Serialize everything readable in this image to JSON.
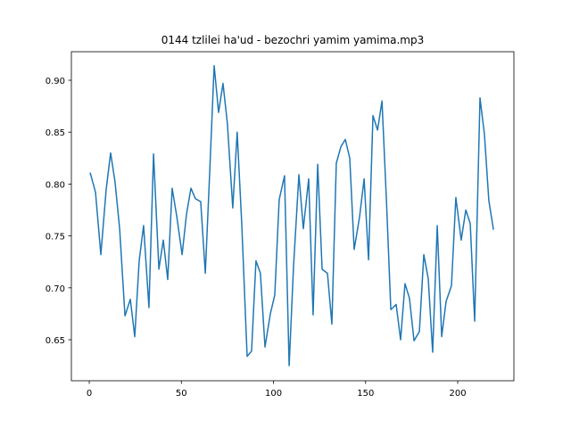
{
  "chart_data": {
    "type": "line",
    "title": "0144 tzlilei ha'ud - bezochri yamim yamima.mp3",
    "series": [
      {
        "color": "#1f77b4",
        "x": [
          0.5,
          3.4,
          6.3,
          9.2,
          11.6,
          14,
          16.5,
          19.4,
          22.3,
          24.7,
          27.1,
          29.5,
          32.4,
          34.9,
          37.8,
          40.2,
          42.6,
          45,
          47.5,
          50.4,
          52.8,
          55.2,
          57.6,
          60.5,
          63,
          65.4,
          67.8,
          70.2,
          72.6,
          75,
          77.9,
          80.3,
          82.8,
          85.7,
          88.1,
          90.5,
          92.9,
          95.4,
          98.3,
          100.7,
          103.1,
          106,
          108.5,
          110.9,
          113.8,
          116.2,
          119.1,
          121.5,
          124,
          126.4,
          129.3,
          131.7,
          134.1,
          136.6,
          139,
          141.4,
          143.8,
          146.7,
          149.2,
          151.6,
          154,
          156.5,
          158.9,
          161.3,
          163.7,
          166.6,
          169,
          171.4,
          173.8,
          176.3,
          179.2,
          181.6,
          184,
          186.4,
          188.9,
          191.3,
          193.7,
          196.6,
          199,
          201.9,
          204.4,
          206.8,
          209.2,
          212.1,
          214.5,
          216.9,
          219.4
        ],
        "values": [
          0.811,
          0.792,
          0.732,
          0.795,
          0.83,
          0.802,
          0.757,
          0.673,
          0.689,
          0.653,
          0.726,
          0.76,
          0.681,
          0.829,
          0.718,
          0.746,
          0.708,
          0.796,
          0.769,
          0.732,
          0.771,
          0.796,
          0.786,
          0.783,
          0.714,
          0.812,
          0.914,
          0.869,
          0.897,
          0.858,
          0.777,
          0.85,
          0.761,
          0.634,
          0.639,
          0.726,
          0.714,
          0.643,
          0.675,
          0.693,
          0.785,
          0.808,
          0.625,
          0.721,
          0.809,
          0.757,
          0.805,
          0.674,
          0.819,
          0.718,
          0.714,
          0.665,
          0.82,
          0.836,
          0.843,
          0.825,
          0.737,
          0.768,
          0.805,
          0.727,
          0.866,
          0.852,
          0.88,
          0.785,
          0.679,
          0.684,
          0.65,
          0.704,
          0.69,
          0.649,
          0.658,
          0.732,
          0.709,
          0.638,
          0.76,
          0.653,
          0.687,
          0.702,
          0.787,
          0.746,
          0.775,
          0.762,
          0.668,
          0.883,
          0.848,
          0.784,
          0.756
        ]
      }
    ],
    "xlim": [
      -9.7,
      230.5
    ],
    "xticks": [
      0,
      50,
      100,
      150,
      200
    ],
    "ylim": [
      0.6105,
      0.9275
    ],
    "yticks": [
      {
        "value": 0.65,
        "label": "0.65"
      },
      {
        "value": 0.7,
        "label": "0.70"
      },
      {
        "value": 0.75,
        "label": "0.75"
      },
      {
        "value": 0.8,
        "label": "0.80"
      },
      {
        "value": 0.85,
        "label": "0.85"
      },
      {
        "value": 0.9,
        "label": "0.90"
      }
    ]
  }
}
